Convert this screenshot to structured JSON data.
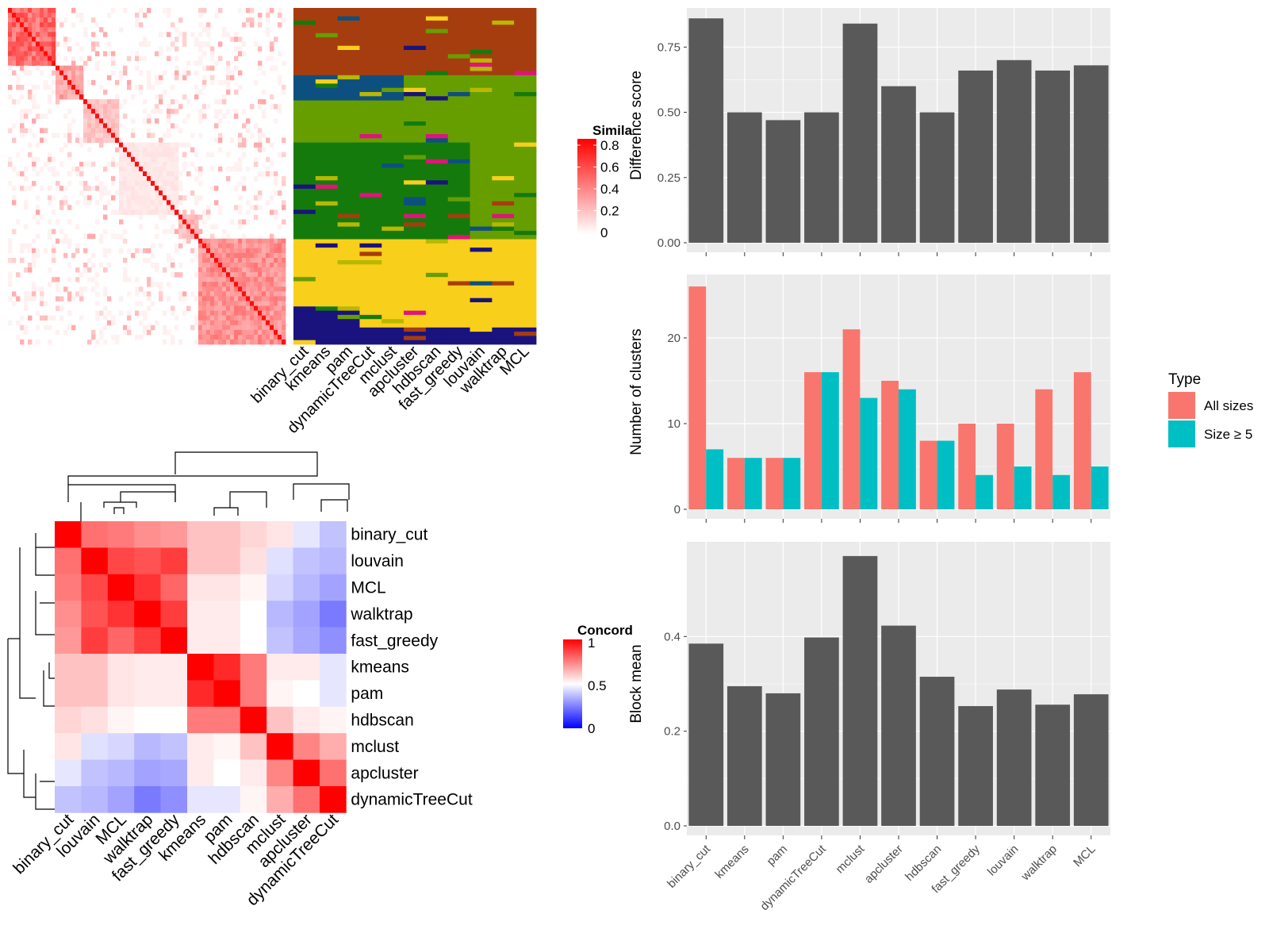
{
  "similarity_heatmap": {
    "legend": {
      "title": "Simila",
      "ticks": [
        "0.8",
        "0.6",
        "0.4",
        "0.2",
        "0"
      ],
      "colors": [
        "#ffffff",
        "#ff0000"
      ]
    },
    "column_labels": [
      "binary_cut",
      "kmeans",
      "pam",
      "dynamicTreeCut",
      "mclust",
      "apcluster",
      "hdbscan",
      "fast_greedy",
      "louvain",
      "walktrap",
      "MCL"
    ],
    "block_boundaries": [
      0,
      0.16,
      0.27,
      0.4,
      0.61,
      0.68,
      1.0
    ]
  },
  "cluster_assignment_heatmap": {
    "palette": [
      "#a63d0f",
      "#0d5080",
      "#669e00",
      "#157a0c",
      "#f8cf1a",
      "#1a137d",
      "#e0147a",
      "#b8b800"
    ]
  },
  "concordance_heatmap": {
    "legend": {
      "title": "Concord",
      "ticks": [
        "1",
        "0.5",
        "0"
      ],
      "colors": [
        "#0000ff",
        "#ffffff",
        "#ff0000"
      ]
    },
    "labels": [
      "binary_cut",
      "louvain",
      "MCL",
      "walktrap",
      "fast_greedy",
      "kmeans",
      "pam",
      "hdbscan",
      "mclust",
      "apcluster",
      "dynamicTreeCut"
    ],
    "matrix": [
      [
        1.0,
        0.78,
        0.76,
        0.72,
        0.7,
        0.62,
        0.62,
        0.58,
        0.55,
        0.45,
        0.38
      ],
      [
        0.78,
        1.0,
        0.86,
        0.84,
        0.88,
        0.62,
        0.62,
        0.56,
        0.44,
        0.38,
        0.36
      ],
      [
        0.76,
        0.86,
        1.0,
        0.9,
        0.8,
        0.55,
        0.55,
        0.52,
        0.42,
        0.36,
        0.32
      ],
      [
        0.72,
        0.84,
        0.9,
        1.0,
        0.88,
        0.54,
        0.54,
        0.5,
        0.36,
        0.32,
        0.24
      ],
      [
        0.7,
        0.88,
        0.8,
        0.88,
        1.0,
        0.54,
        0.54,
        0.5,
        0.38,
        0.33,
        0.28
      ],
      [
        0.62,
        0.62,
        0.55,
        0.54,
        0.54,
        1.0,
        0.92,
        0.76,
        0.54,
        0.54,
        0.45
      ],
      [
        0.62,
        0.62,
        0.55,
        0.54,
        0.54,
        0.92,
        1.0,
        0.76,
        0.52,
        0.5,
        0.45
      ],
      [
        0.58,
        0.56,
        0.52,
        0.5,
        0.5,
        0.76,
        0.76,
        1.0,
        0.62,
        0.54,
        0.52
      ],
      [
        0.55,
        0.44,
        0.42,
        0.36,
        0.38,
        0.54,
        0.52,
        0.62,
        1.0,
        0.74,
        0.66
      ],
      [
        0.45,
        0.38,
        0.36,
        0.32,
        0.33,
        0.54,
        0.5,
        0.54,
        0.74,
        1.0,
        0.78
      ],
      [
        0.38,
        0.36,
        0.32,
        0.24,
        0.28,
        0.45,
        0.45,
        0.52,
        0.66,
        0.78,
        1.0
      ]
    ]
  },
  "chart_data": [
    {
      "type": "bar",
      "categories": [
        "binary_cut",
        "kmeans",
        "pam",
        "dynamicTreeCut",
        "mclust",
        "apcluster",
        "hdbscan",
        "fast_greedy",
        "louvain",
        "walktrap",
        "MCL"
      ],
      "values": [
        0.86,
        0.5,
        0.47,
        0.5,
        0.84,
        0.6,
        0.5,
        0.66,
        0.7,
        0.66,
        0.68
      ],
      "ylabel": "Difference score",
      "ylim": [
        0,
        0.9
      ],
      "yticks": [
        0,
        0.25,
        0.5,
        0.75
      ],
      "ytick_labels": [
        "0.00",
        "0.25",
        "0.50",
        "0.75"
      ],
      "bar_color": "#595959",
      "panel_color": "#ebebeb"
    },
    {
      "type": "bar",
      "categories": [
        "binary_cut",
        "kmeans",
        "pam",
        "dynamicTreeCut",
        "mclust",
        "apcluster",
        "hdbscan",
        "fast_greedy",
        "louvain",
        "walktrap",
        "MCL"
      ],
      "series": [
        {
          "name": "All sizes",
          "values": [
            26,
            6,
            6,
            16,
            21,
            15,
            8,
            10,
            10,
            14,
            16
          ],
          "color": "#f8766d"
        },
        {
          "name": "Size ≥ 5",
          "values": [
            7,
            6,
            6,
            16,
            13,
            14,
            8,
            4,
            5,
            4,
            5
          ],
          "color": "#00bfc4"
        }
      ],
      "ylabel": "Number of clusters",
      "ylim": [
        0,
        27.4
      ],
      "yticks": [
        0,
        10,
        20
      ],
      "ytick_labels": [
        "0",
        "10",
        "20"
      ],
      "legend": {
        "title": "Type",
        "position": "right"
      },
      "panel_color": "#ebebeb"
    },
    {
      "type": "bar",
      "categories": [
        "binary_cut",
        "kmeans",
        "pam",
        "dynamicTreeCut",
        "mclust",
        "apcluster",
        "hdbscan",
        "fast_greedy",
        "louvain",
        "walktrap",
        "MCL"
      ],
      "values": [
        0.385,
        0.295,
        0.28,
        0.398,
        0.57,
        0.423,
        0.315,
        0.253,
        0.288,
        0.256,
        0.278
      ],
      "ylabel": "Block mean",
      "ylim": [
        0,
        0.6
      ],
      "yticks": [
        0,
        0.2,
        0.4
      ],
      "ytick_labels": [
        "0.0",
        "0.2",
        "0.4"
      ],
      "bar_color": "#595959",
      "panel_color": "#ebebeb"
    }
  ]
}
